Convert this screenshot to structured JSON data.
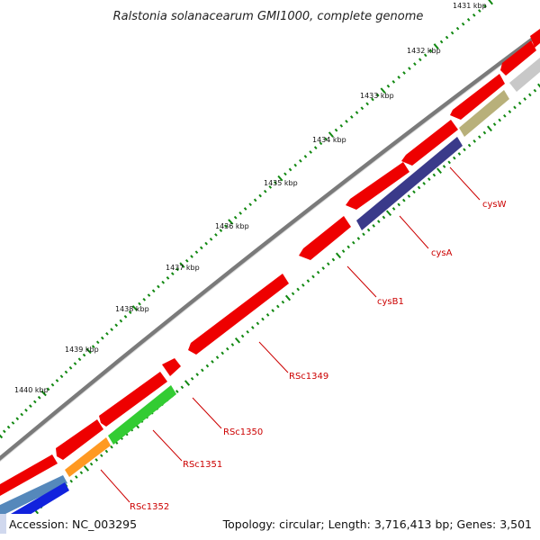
{
  "title": "Ralstonia solanacearum GMI1000, complete genome",
  "footer": {
    "accession": "Accession: NC_003295",
    "summary": "Topology: circular; Length: 3,716,413 bp; Genes: 3,501"
  },
  "kbp_labels": [
    {
      "id": "1431",
      "text": "1431 kbp"
    },
    {
      "id": "1432",
      "text": "1432 kbp"
    },
    {
      "id": "1433",
      "text": "1433 kbp"
    },
    {
      "id": "1434",
      "text": "1434 kbp"
    },
    {
      "id": "1435",
      "text": "1435 kbp"
    },
    {
      "id": "1436",
      "text": "1436 kbp"
    },
    {
      "id": "1437",
      "text": "1437 kbp"
    },
    {
      "id": "1438",
      "text": "1438 kbp"
    },
    {
      "id": "1439",
      "text": "1439 kbp"
    },
    {
      "id": "1440",
      "text": "1440 kbp"
    }
  ],
  "gene_labels": [
    {
      "id": "cysW",
      "text": "cysW"
    },
    {
      "id": "cysA",
      "text": "cysA"
    },
    {
      "id": "cysB1",
      "text": "cysB1"
    },
    {
      "id": "RSc1349",
      "text": "RSc1349"
    },
    {
      "id": "RSc1350",
      "text": "RSc1350"
    },
    {
      "id": "RSc1351",
      "text": "RSc1351"
    },
    {
      "id": "RSc1352",
      "text": "RSc1352"
    }
  ],
  "colors": {
    "cds": "#ee0000",
    "cysW": "#b8b07a",
    "cysA": "#3a3a8a",
    "RSc1351": "#33cc33",
    "RSc1352": "#ff9922",
    "blue_gene": "#1122dd",
    "steel_gene": "#5588bb",
    "grey_gene": "#c8c8c8",
    "backbone": "#7a7a7a",
    "ticks": "#118811",
    "label": "#cc0000",
    "leader": "#cc0000"
  }
}
